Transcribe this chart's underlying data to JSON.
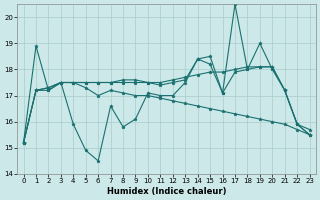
{
  "xlabel": "Humidex (Indice chaleur)",
  "bg_color": "#cce8e8",
  "grid_color": "#aacccc",
  "line_color": "#1a7070",
  "xlim": [
    -0.5,
    23.5
  ],
  "ylim": [
    14.0,
    20.5
  ],
  "yticks": [
    14,
    15,
    16,
    17,
    18,
    19,
    20
  ],
  "xticks": [
    0,
    1,
    2,
    3,
    4,
    5,
    6,
    7,
    8,
    9,
    10,
    11,
    12,
    13,
    14,
    15,
    16,
    17,
    18,
    19,
    20,
    21,
    22,
    23
  ],
  "series": [
    [
      15.2,
      18.9,
      17.2,
      17.5,
      15.9,
      14.9,
      14.5,
      16.6,
      15.8,
      16.1,
      17.1,
      17.0,
      17.0,
      17.5,
      18.4,
      18.2,
      17.1,
      17.9,
      18.0,
      19.0,
      18.0,
      17.2,
      15.9,
      15.7
    ],
    [
      15.2,
      17.2,
      17.3,
      17.5,
      17.5,
      17.5,
      17.5,
      17.5,
      17.5,
      17.5,
      17.5,
      17.5,
      17.6,
      17.7,
      17.8,
      17.9,
      17.9,
      18.0,
      18.1,
      18.1,
      18.1,
      17.2,
      15.9,
      15.5
    ],
    [
      15.2,
      17.2,
      17.3,
      17.5,
      17.5,
      17.5,
      17.5,
      17.5,
      17.6,
      17.6,
      17.5,
      17.4,
      17.5,
      17.6,
      18.4,
      18.5,
      17.1,
      20.5,
      18.0,
      18.1,
      18.1,
      17.2,
      15.9,
      15.5
    ],
    [
      15.2,
      17.2,
      17.2,
      17.5,
      17.5,
      17.3,
      17.0,
      17.2,
      17.1,
      17.0,
      17.0,
      16.9,
      16.8,
      16.7,
      16.6,
      16.5,
      16.4,
      16.3,
      16.2,
      16.1,
      16.0,
      15.9,
      15.7,
      15.5
    ]
  ]
}
